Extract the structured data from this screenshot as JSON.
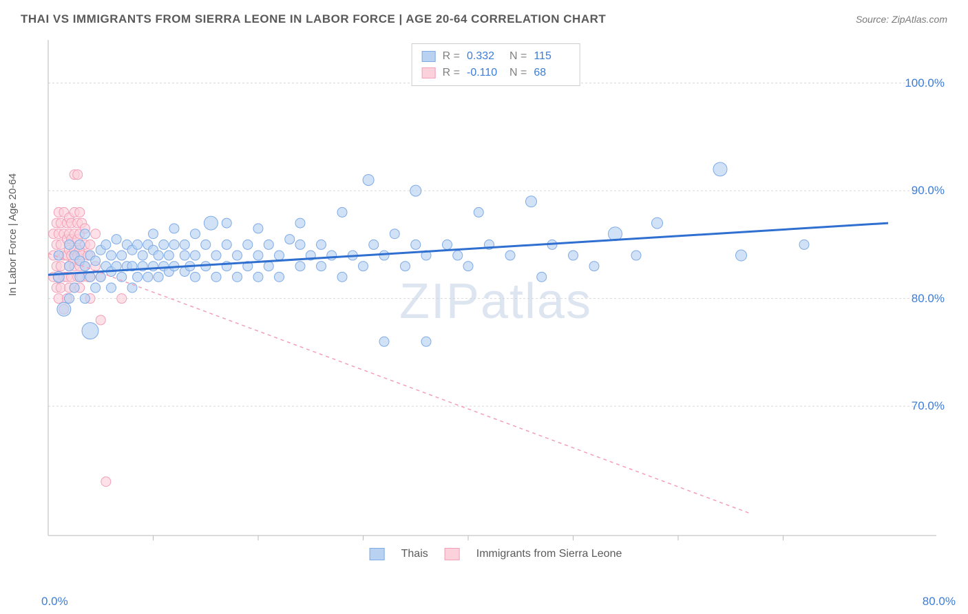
{
  "header": {
    "title": "THAI VS IMMIGRANTS FROM SIERRA LEONE IN LABOR FORCE | AGE 20-64 CORRELATION CHART",
    "source": "Source: ZipAtlas.com"
  },
  "watermark": {
    "zip": "ZIP",
    "atlas": "atlas"
  },
  "chart": {
    "type": "scatter",
    "y_label": "In Labor Force | Age 20-64",
    "xlim": [
      0,
      80
    ],
    "ylim": [
      58,
      104
    ],
    "x_tick_positions": [
      10,
      20,
      30,
      40,
      50,
      60,
      70
    ],
    "y_ticks": [
      70.0,
      80.0,
      90.0,
      100.0
    ],
    "y_tick_labels": [
      "70.0%",
      "80.0%",
      "90.0%",
      "100.0%"
    ],
    "x_origin_label": "0.0%",
    "x_max_label": "80.0%",
    "grid_color": "#d8d8d8",
    "axis_color": "#bababa",
    "background_color": "#ffffff"
  },
  "series": {
    "thais": {
      "label": "Thais",
      "R": "0.332",
      "N": "115",
      "fill": "#b9d2f2",
      "stroke": "#7eaae6",
      "trend_color": "#2f6fd0",
      "trend_dash": "none",
      "trend_width": 3,
      "trend": {
        "x1": 0,
        "y1": 82.2,
        "x2": 80,
        "y2": 87.0
      },
      "points": [
        [
          1,
          82,
          8
        ],
        [
          1,
          84,
          7
        ],
        [
          1.5,
          79,
          10
        ],
        [
          2,
          80,
          7
        ],
        [
          2,
          83,
          7
        ],
        [
          2,
          85,
          7
        ],
        [
          2.5,
          81,
          7
        ],
        [
          2.5,
          84,
          7
        ],
        [
          3,
          82,
          7
        ],
        [
          3,
          83.5,
          7
        ],
        [
          3,
          85,
          7
        ],
        [
          3.5,
          80,
          7
        ],
        [
          3.5,
          83,
          7
        ],
        [
          3.5,
          86,
          7
        ],
        [
          4,
          77,
          12
        ],
        [
          4,
          82,
          7
        ],
        [
          4,
          84,
          7
        ],
        [
          4.5,
          81,
          7
        ],
        [
          4.5,
          83.5,
          7
        ],
        [
          5,
          82,
          7
        ],
        [
          5,
          84.5,
          7
        ],
        [
          5.5,
          83,
          7
        ],
        [
          5.5,
          85,
          7
        ],
        [
          6,
          81,
          7
        ],
        [
          6,
          82.5,
          7
        ],
        [
          6,
          84,
          7
        ],
        [
          6.5,
          83,
          7
        ],
        [
          6.5,
          85.5,
          7
        ],
        [
          7,
          82,
          7
        ],
        [
          7,
          84,
          7
        ],
        [
          7.5,
          83,
          7
        ],
        [
          7.5,
          85,
          7
        ],
        [
          8,
          81,
          7
        ],
        [
          8,
          83,
          7
        ],
        [
          8,
          84.5,
          7
        ],
        [
          8.5,
          82,
          7
        ],
        [
          8.5,
          85,
          7
        ],
        [
          9,
          83,
          7
        ],
        [
          9,
          84,
          7
        ],
        [
          9.5,
          82,
          7
        ],
        [
          9.5,
          85,
          7
        ],
        [
          10,
          83,
          7
        ],
        [
          10,
          84.5,
          7
        ],
        [
          10,
          86,
          7
        ],
        [
          10.5,
          82,
          7
        ],
        [
          10.5,
          84,
          7
        ],
        [
          11,
          83,
          7
        ],
        [
          11,
          85,
          7
        ],
        [
          11.5,
          82.5,
          7
        ],
        [
          11.5,
          84,
          7
        ],
        [
          12,
          83,
          7
        ],
        [
          12,
          85,
          7
        ],
        [
          12,
          86.5,
          7
        ],
        [
          13,
          82.5,
          7
        ],
        [
          13,
          84,
          7
        ],
        [
          13,
          85,
          7
        ],
        [
          13.5,
          83,
          7
        ],
        [
          14,
          82,
          7
        ],
        [
          14,
          84,
          7
        ],
        [
          14,
          86,
          7
        ],
        [
          15,
          83,
          7
        ],
        [
          15,
          85,
          7
        ],
        [
          15.5,
          87,
          10
        ],
        [
          16,
          82,
          7
        ],
        [
          16,
          84,
          7
        ],
        [
          17,
          83,
          7
        ],
        [
          17,
          85,
          7
        ],
        [
          17,
          87,
          7
        ],
        [
          18,
          82,
          7
        ],
        [
          18,
          84,
          7
        ],
        [
          19,
          83,
          7
        ],
        [
          19,
          85,
          7
        ],
        [
          20,
          82,
          7
        ],
        [
          20,
          84,
          7
        ],
        [
          20,
          86.5,
          7
        ],
        [
          21,
          83,
          7
        ],
        [
          21,
          85,
          7
        ],
        [
          22,
          82,
          7
        ],
        [
          22,
          84,
          7
        ],
        [
          23,
          85.5,
          7
        ],
        [
          24,
          83,
          7
        ],
        [
          24,
          85,
          7
        ],
        [
          24,
          87,
          7
        ],
        [
          25,
          84,
          7
        ],
        [
          26,
          83,
          7
        ],
        [
          26,
          85,
          7
        ],
        [
          27,
          84,
          7
        ],
        [
          28,
          82,
          7
        ],
        [
          28,
          88,
          7
        ],
        [
          29,
          84,
          7
        ],
        [
          30,
          83,
          7
        ],
        [
          30.5,
          91,
          8
        ],
        [
          31,
          85,
          7
        ],
        [
          32,
          76,
          7
        ],
        [
          32,
          84,
          7
        ],
        [
          33,
          86,
          7
        ],
        [
          34,
          83,
          7
        ],
        [
          35,
          85,
          7
        ],
        [
          35,
          90,
          8
        ],
        [
          36,
          76,
          7
        ],
        [
          36,
          84,
          7
        ],
        [
          38,
          85,
          7
        ],
        [
          39,
          84,
          7
        ],
        [
          40,
          83,
          7
        ],
        [
          41,
          88,
          7
        ],
        [
          42,
          85,
          7
        ],
        [
          44,
          84,
          7
        ],
        [
          46,
          89,
          8
        ],
        [
          47,
          82,
          7
        ],
        [
          48,
          85,
          7
        ],
        [
          50,
          84,
          7
        ],
        [
          52,
          83,
          7
        ],
        [
          54,
          86,
          10
        ],
        [
          56,
          84,
          7
        ],
        [
          58,
          87,
          8
        ],
        [
          64,
          92,
          10
        ],
        [
          66,
          84,
          8
        ],
        [
          72,
          85,
          7
        ]
      ]
    },
    "sierra": {
      "label": "Immigrants from Sierra Leone",
      "R": "-0.110",
      "N": "68",
      "fill": "#fbd1db",
      "stroke": "#f29fb7",
      "trend_color": "#f29fb7",
      "trend_dash": "5,5",
      "trend_width": 1.5,
      "trend": {
        "x1": 0,
        "y1": 84.2,
        "x2": 67,
        "y2": 60
      },
      "points": [
        [
          0.5,
          82,
          7
        ],
        [
          0.5,
          84,
          7
        ],
        [
          0.5,
          86,
          7
        ],
        [
          0.8,
          81,
          7
        ],
        [
          0.8,
          83,
          7
        ],
        [
          0.8,
          85,
          7
        ],
        [
          0.8,
          87,
          7
        ],
        [
          1,
          80,
          7
        ],
        [
          1,
          82,
          7
        ],
        [
          1,
          84,
          7
        ],
        [
          1,
          86,
          7
        ],
        [
          1,
          88,
          7
        ],
        [
          1.2,
          81,
          7
        ],
        [
          1.2,
          83,
          7
        ],
        [
          1.2,
          85,
          7
        ],
        [
          1.2,
          87,
          7
        ],
        [
          1.5,
          79,
          7
        ],
        [
          1.5,
          82,
          7
        ],
        [
          1.5,
          84,
          7
        ],
        [
          1.5,
          86,
          7
        ],
        [
          1.5,
          88,
          7
        ],
        [
          1.8,
          80,
          7
        ],
        [
          1.8,
          82,
          7
        ],
        [
          1.8,
          84,
          7
        ],
        [
          1.8,
          85.5,
          7
        ],
        [
          1.8,
          87,
          7
        ],
        [
          2,
          81,
          7
        ],
        [
          2,
          83,
          7
        ],
        [
          2,
          84.5,
          7
        ],
        [
          2,
          86,
          7
        ],
        [
          2,
          87.5,
          7
        ],
        [
          2.2,
          82,
          7
        ],
        [
          2.2,
          84,
          7
        ],
        [
          2.2,
          85.5,
          7
        ],
        [
          2.2,
          87,
          7
        ],
        [
          2.5,
          81,
          7
        ],
        [
          2.5,
          83,
          7
        ],
        [
          2.5,
          84.5,
          7
        ],
        [
          2.5,
          86,
          7
        ],
        [
          2.5,
          88,
          7
        ],
        [
          2.5,
          91.5,
          7
        ],
        [
          2.8,
          82,
          7
        ],
        [
          2.8,
          84,
          7
        ],
        [
          2.8,
          85.5,
          7
        ],
        [
          2.8,
          87,
          7
        ],
        [
          2.8,
          91.5,
          7
        ],
        [
          3,
          81,
          7
        ],
        [
          3,
          83,
          7
        ],
        [
          3,
          84.5,
          7
        ],
        [
          3,
          86,
          7
        ],
        [
          3,
          88,
          7
        ],
        [
          3.2,
          82,
          7
        ],
        [
          3.2,
          84,
          7
        ],
        [
          3.2,
          87,
          7
        ],
        [
          3.5,
          83,
          7
        ],
        [
          3.5,
          85,
          7
        ],
        [
          3.5,
          86.5,
          7
        ],
        [
          3.8,
          82,
          7
        ],
        [
          3.8,
          84,
          7
        ],
        [
          4,
          80,
          7
        ],
        [
          4,
          82,
          7
        ],
        [
          4,
          85,
          7
        ],
        [
          4.5,
          83,
          7
        ],
        [
          4.5,
          86,
          7
        ],
        [
          5,
          78,
          7
        ],
        [
          5,
          82,
          7
        ],
        [
          5.5,
          63,
          7
        ],
        [
          7,
          80,
          7
        ]
      ]
    }
  },
  "legend_labels": {
    "R": "R =",
    "N": "N ="
  }
}
